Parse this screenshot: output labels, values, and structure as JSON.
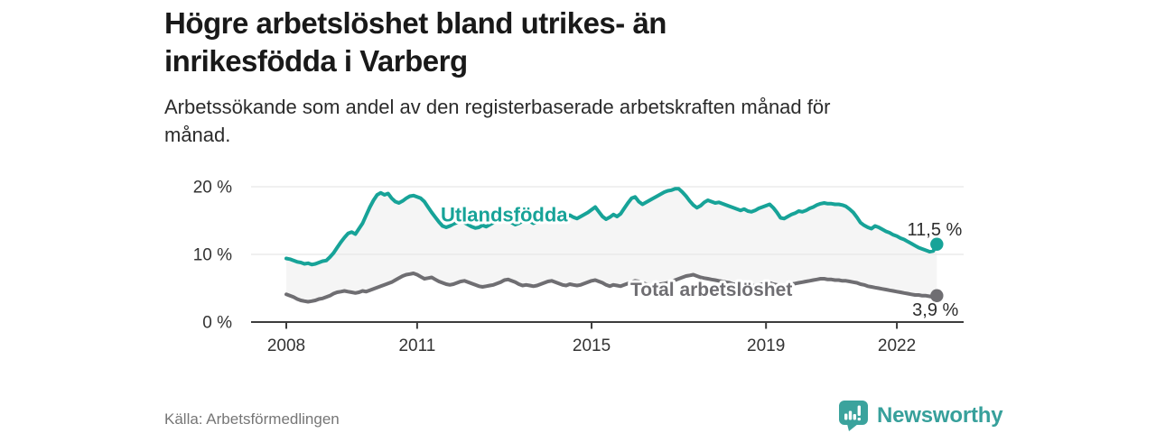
{
  "header": {
    "title_lines": [
      "Högre arbetslöshet bland utrikes- än",
      "inrikesfödda i Varberg"
    ],
    "subtitle_lines": [
      "Arbetssökande som andel av den registerbaserade arbetskraften månad för",
      "månad."
    ]
  },
  "footer": {
    "source": "Källa: Arbetsförmedlingen",
    "brand": "Newsworthy"
  },
  "colors": {
    "accent_teal": "#17a398",
    "line_gray": "#6f6e72",
    "band_fill": "#f5f5f5",
    "grid": "#e2e2e2",
    "axis": "#3c3c3c",
    "text_dark": "#2d2d2d",
    "logo_teal": "#3ba39d"
  },
  "chart_data": {
    "type": "line",
    "title": "",
    "xlabel": "",
    "ylabel": "",
    "grid": "horizontal",
    "legend_position": "inline-labels",
    "x_axis": {
      "start_year": 2008,
      "interval": "monthly",
      "tick_years": [
        2008,
        2011,
        2015,
        2019,
        2022
      ],
      "tick_labels": [
        "2008",
        "2011",
        "2015",
        "2019",
        "2022"
      ]
    },
    "y_axis": {
      "max": 21.3,
      "ticks": [
        {
          "value": 0,
          "label": "0 %"
        },
        {
          "value": 10,
          "label": "10 %"
        },
        {
          "value": 20,
          "label": "20 %"
        }
      ]
    },
    "series": [
      {
        "name": "Utlandsfödda",
        "color": "#17a398",
        "end_label": "11,5 %",
        "end_value": 11.5,
        "label_pos": {
          "year": 2011.54,
          "pct": 14.9
        },
        "values": [
          9.4,
          9.3,
          9.1,
          8.9,
          8.8,
          8.6,
          8.7,
          8.5,
          8.6,
          8.8,
          9.0,
          9.1,
          9.6,
          10.2,
          11.0,
          11.8,
          12.5,
          13.1,
          13.3,
          13.0,
          13.8,
          14.6,
          15.8,
          17.0,
          18.0,
          18.8,
          19.1,
          18.8,
          19.0,
          18.3,
          17.8,
          17.6,
          17.9,
          18.3,
          18.6,
          18.7,
          18.5,
          18.3,
          17.8,
          17.0,
          16.2,
          15.5,
          14.8,
          14.2,
          14.0,
          14.2,
          14.5,
          14.7,
          14.9,
          14.7,
          14.4,
          14.1,
          13.9,
          14.0,
          14.3,
          14.1,
          14.4,
          14.7,
          14.9,
          15.1,
          15.2,
          15.0,
          14.7,
          14.4,
          14.6,
          14.9,
          15.2,
          14.9,
          14.6,
          14.8,
          15.1,
          15.3,
          15.5,
          15.6,
          15.3,
          15.0,
          15.2,
          15.5,
          15.8,
          15.5,
          15.3,
          15.6,
          15.9,
          16.2,
          16.6,
          17.0,
          16.3,
          15.6,
          15.2,
          15.5,
          15.9,
          15.6,
          16.0,
          16.8,
          17.6,
          18.3,
          18.5,
          17.8,
          17.4,
          17.7,
          18.0,
          18.3,
          18.6,
          18.9,
          19.2,
          19.4,
          19.5,
          19.7,
          19.7,
          19.2,
          18.6,
          17.9,
          17.3,
          16.9,
          17.2,
          17.7,
          18.0,
          17.8,
          17.6,
          17.7,
          17.5,
          17.3,
          17.1,
          16.9,
          16.7,
          16.5,
          16.7,
          16.4,
          16.3,
          16.5,
          16.8,
          17.0,
          17.2,
          17.4,
          16.9,
          16.2,
          15.4,
          15.3,
          15.6,
          15.9,
          16.1,
          16.4,
          16.3,
          16.5,
          16.8,
          17.0,
          17.3,
          17.5,
          17.6,
          17.5,
          17.5,
          17.4,
          17.4,
          17.3,
          17.1,
          16.7,
          16.2,
          15.5,
          14.7,
          14.3,
          14.0,
          13.8,
          14.2,
          14.0,
          13.7,
          13.4,
          13.2,
          12.9,
          12.7,
          12.4,
          12.2,
          11.9,
          11.6,
          11.3,
          11.0,
          10.8,
          10.6,
          10.4,
          10.5,
          11.5
        ]
      },
      {
        "name": "Total arbetslöshet",
        "color": "#6f6e72",
        "end_label": "3,9 %",
        "end_value": 3.9,
        "label_pos": {
          "year": 2015.89,
          "pct": 3.87
        },
        "values": [
          4.1,
          3.9,
          3.7,
          3.4,
          3.2,
          3.1,
          3.0,
          3.1,
          3.2,
          3.4,
          3.5,
          3.7,
          3.9,
          4.2,
          4.4,
          4.5,
          4.6,
          4.5,
          4.4,
          4.3,
          4.4,
          4.6,
          4.5,
          4.7,
          4.9,
          5.1,
          5.3,
          5.5,
          5.7,
          5.9,
          6.2,
          6.5,
          6.8,
          7.0,
          7.1,
          7.2,
          7.0,
          6.7,
          6.4,
          6.5,
          6.6,
          6.3,
          6.0,
          5.8,
          5.6,
          5.5,
          5.6,
          5.8,
          6.0,
          6.1,
          5.9,
          5.7,
          5.5,
          5.3,
          5.2,
          5.3,
          5.4,
          5.5,
          5.7,
          5.9,
          6.2,
          6.3,
          6.1,
          5.9,
          5.6,
          5.4,
          5.5,
          5.4,
          5.3,
          5.4,
          5.6,
          5.8,
          6.0,
          6.1,
          5.9,
          5.7,
          5.5,
          5.4,
          5.6,
          5.5,
          5.4,
          5.5,
          5.7,
          5.9,
          6.1,
          6.2,
          6.0,
          5.8,
          5.5,
          5.3,
          5.5,
          5.4,
          5.3,
          5.5,
          5.7,
          5.9,
          6.1,
          6.0,
          5.8,
          5.6,
          5.4,
          5.3,
          5.5,
          5.6,
          5.7,
          5.8,
          6.0,
          6.2,
          6.4,
          6.6,
          6.8,
          6.9,
          7.0,
          6.8,
          6.6,
          6.5,
          6.4,
          6.3,
          6.2,
          6.1,
          6.0,
          5.9,
          5.8,
          5.6,
          5.5,
          5.4,
          5.5,
          5.4,
          5.3,
          5.4,
          5.5,
          5.6,
          5.7,
          5.8,
          5.6,
          5.5,
          5.4,
          5.3,
          5.5,
          5.6,
          5.7,
          5.8,
          5.9,
          6.0,
          6.1,
          6.2,
          6.3,
          6.4,
          6.4,
          6.3,
          6.3,
          6.2,
          6.2,
          6.1,
          6.1,
          6.0,
          5.9,
          5.8,
          5.6,
          5.5,
          5.3,
          5.2,
          5.1,
          5.0,
          4.9,
          4.8,
          4.7,
          4.6,
          4.5,
          4.4,
          4.3,
          4.2,
          4.1,
          4.0,
          4.0,
          3.9,
          3.9,
          3.8,
          3.7,
          3.9
        ]
      }
    ]
  }
}
